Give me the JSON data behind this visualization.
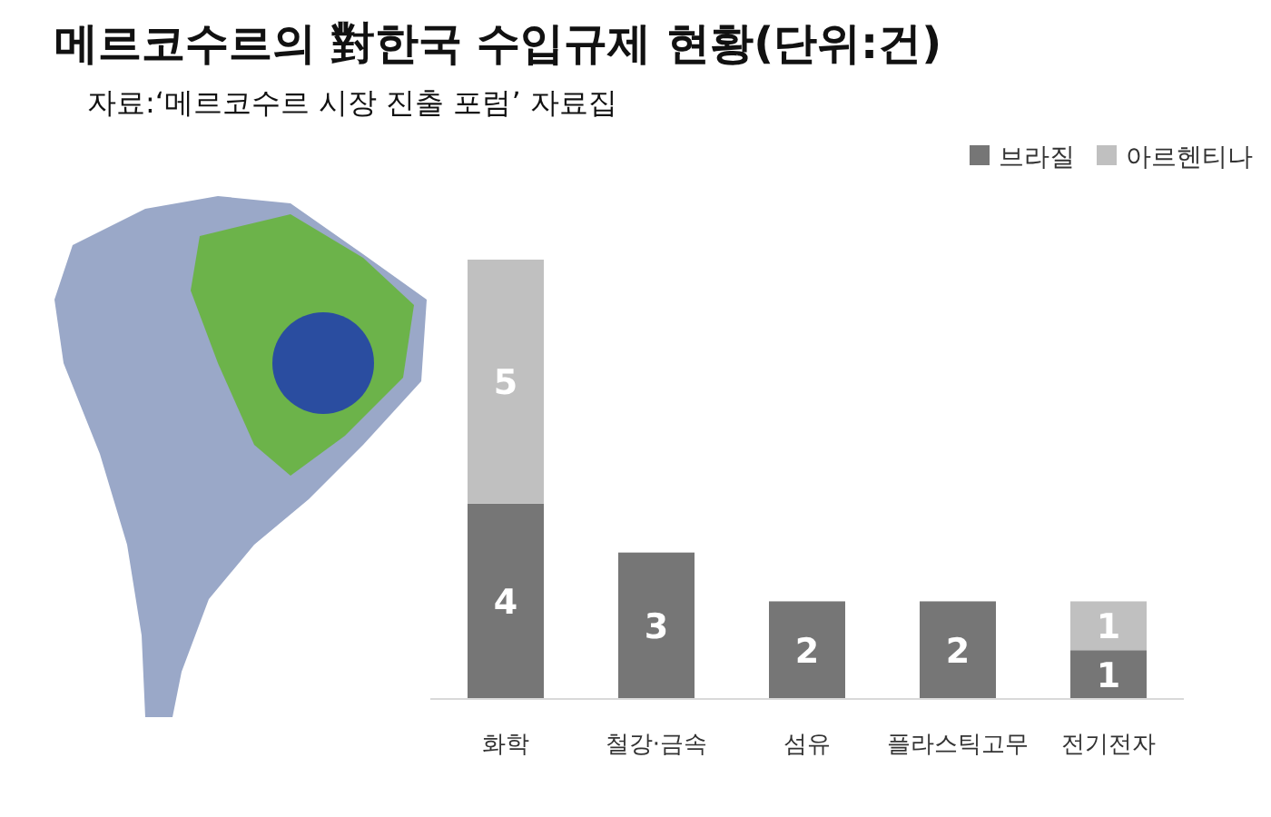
{
  "chart_data": {
    "type": "bar",
    "title": "메르코수르의 對한국 수입규제 현황(단위:건)",
    "subtitle": "자료:‘메르코수르 시장 진출 포럼’ 자료집",
    "categories": [
      "화학",
      "철강·금속",
      "섬유",
      "플라스틱고무",
      "전기전자"
    ],
    "stacked": true,
    "data_labels": true,
    "legend": "top right",
    "series": [
      {
        "name": "브라질",
        "color": "#767676",
        "values": [
          4,
          3,
          2,
          2,
          1
        ]
      },
      {
        "name": "아르헨티나",
        "color": "#c0c0c0",
        "values": [
          5,
          null,
          null,
          null,
          1
        ]
      }
    ]
  }
}
